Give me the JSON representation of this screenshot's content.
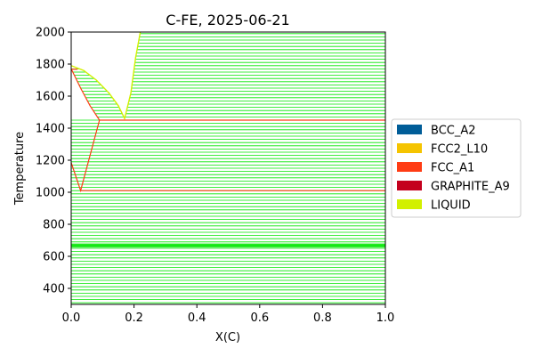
{
  "chart_data": {
    "type": "line",
    "title": "C-FE, 2025-06-21",
    "xlabel": "X(C)",
    "ylabel": "Temperature",
    "xlim": [
      0,
      1
    ],
    "ylim": [
      300,
      2000
    ],
    "x_ticks": [
      0.0,
      0.2,
      0.4,
      0.6,
      0.8,
      1.0
    ],
    "x_tick_labels": [
      "0.0",
      "0.2",
      "0.4",
      "0.6",
      "0.8",
      "1.0"
    ],
    "y_ticks": [
      400,
      600,
      800,
      1000,
      1200,
      1400,
      1600,
      1800,
      2000
    ],
    "y_tick_labels": [
      "400",
      "600",
      "800",
      "1000",
      "1200",
      "1400",
      "1600",
      "1800",
      "2000"
    ],
    "grid": false,
    "legend_position": "right",
    "legend": [
      {
        "label": "BCC_A2",
        "color": "#005d98"
      },
      {
        "label": "FCC2_L10",
        "color": "#f5c400"
      },
      {
        "label": "FCC_A1",
        "color": "#ff3c14"
      },
      {
        "label": "GRAPHITE_A9",
        "color": "#c4001e"
      },
      {
        "label": "LIQUID",
        "color": "#d2f000"
      }
    ],
    "tie_line_color": "#00e600",
    "tie_line_spacing": 20,
    "thick_band": [
      655,
      680
    ],
    "series": [
      {
        "name": "LIQUID",
        "color": "#d2f000",
        "points": [
          [
            0.0,
            1790
          ],
          [
            0.04,
            1760
          ],
          [
            0.08,
            1700
          ],
          [
            0.12,
            1620
          ],
          [
            0.15,
            1540
          ],
          [
            0.17,
            1460
          ],
          [
            0.19,
            1620
          ],
          [
            0.205,
            1840
          ],
          [
            0.22,
            2000
          ]
        ]
      },
      {
        "name": "FCC_A1",
        "color": "#ff3c14",
        "points": [
          [
            0.0,
            1770
          ],
          [
            0.03,
            1650
          ],
          [
            0.06,
            1540
          ],
          [
            0.09,
            1450
          ]
        ]
      },
      {
        "name": "FCC_A1",
        "color": "#ff3c14",
        "points": [
          [
            0.0,
            1185
          ],
          [
            0.03,
            1010
          ],
          [
            0.09,
            1450
          ]
        ]
      },
      {
        "name": "FCC_A1",
        "color": "#ff3c14",
        "points": [
          [
            0.09,
            1450
          ],
          [
            1.0,
            1450
          ]
        ]
      },
      {
        "name": "FCC_A1",
        "color": "#ff3c14",
        "points": [
          [
            0.03,
            1010
          ],
          [
            1.0,
            1010
          ]
        ]
      },
      {
        "name": "FCC_A1",
        "color": "#ff3c14",
        "points": [
          [
            0.0,
            1768
          ],
          [
            0.02,
            1768
          ]
        ]
      }
    ]
  }
}
